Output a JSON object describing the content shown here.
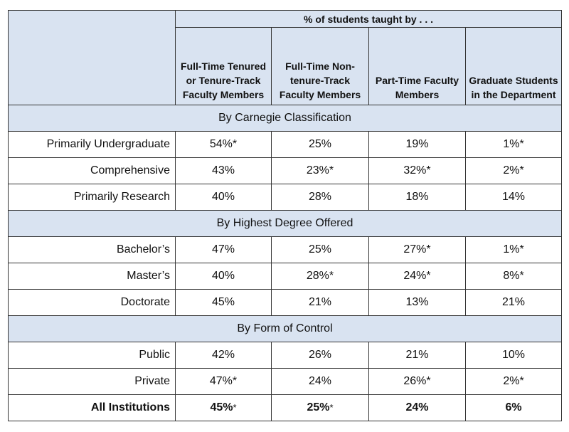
{
  "header": {
    "super": "% of students taught by . . .",
    "columns": [
      "Full-Time Tenured or Tenure-Track Faculty Members",
      "Full-Time Non-tenure-Track Faculty Members",
      "Part-Time Faculty Members",
      "Graduate Students in the Department"
    ]
  },
  "sections": [
    {
      "title": "By Carnegie Classification",
      "rows": [
        {
          "label": "Primarily Undergraduate",
          "values": [
            "54%*",
            "25%",
            "19%",
            "1%*"
          ]
        },
        {
          "label": "Comprehensive",
          "values": [
            "43%",
            "23%*",
            "32%*",
            "2%*"
          ]
        },
        {
          "label": "Primarily Research",
          "values": [
            "40%",
            "28%",
            "18%",
            "14%"
          ]
        }
      ]
    },
    {
      "title": "By Highest Degree Offered",
      "rows": [
        {
          "label": "Bachelor’s",
          "values": [
            "47%",
            "25%",
            "27%*",
            "1%*"
          ]
        },
        {
          "label": "Master’s",
          "values": [
            "40%",
            "28%*",
            "24%*",
            "8%*"
          ]
        },
        {
          "label": "Doctorate",
          "values": [
            "45%",
            "21%",
            "13%",
            "21%"
          ]
        }
      ]
    },
    {
      "title": "By Form of Control",
      "rows": [
        {
          "label": "Public",
          "values": [
            "42%",
            "26%",
            "21%",
            "10%"
          ]
        },
        {
          "label": "Private",
          "values": [
            "47%*",
            "24%",
            "26%*",
            "2%*"
          ]
        }
      ]
    }
  ],
  "total": {
    "label": "All Institutions",
    "values": [
      "45%",
      "25%",
      "24%",
      "6%"
    ],
    "asterisks": [
      "*",
      "*",
      "",
      ""
    ]
  }
}
